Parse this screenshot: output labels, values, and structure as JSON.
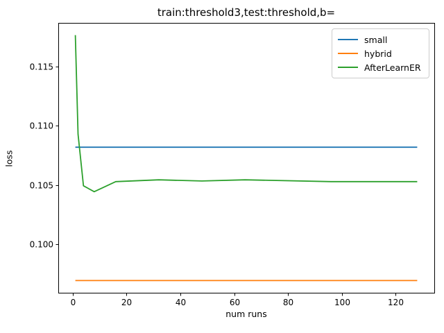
{
  "chart_data": {
    "type": "line",
    "title": "train:threshold3,test:threshold,b=",
    "xlabel": "num runs",
    "ylabel": "loss",
    "xlim": [
      -5.35,
      134.35
    ],
    "ylim": [
      0.09593,
      0.11868
    ],
    "xticks": [
      0,
      20,
      40,
      60,
      80,
      100,
      120
    ],
    "yticks": [
      0.1,
      0.105,
      0.11,
      0.115
    ],
    "ytick_labels": [
      "0.100",
      "0.105",
      "0.110",
      "0.115"
    ],
    "grid": false,
    "legend_position": "upper right",
    "x": [
      1,
      2,
      4,
      8,
      16,
      32,
      48,
      64,
      96,
      128
    ],
    "series": [
      {
        "name": "small",
        "color": "#1f77b4",
        "values": [
          0.1082,
          0.1082,
          0.1082,
          0.1082,
          0.1082,
          0.1082,
          0.1082,
          0.1082,
          0.1082,
          0.1082
        ]
      },
      {
        "name": "hybrid",
        "color": "#ff7f0e",
        "values": [
          0.09696,
          0.09696,
          0.09696,
          0.09696,
          0.09696,
          0.09696,
          0.09696,
          0.09696,
          0.09696,
          0.09696
        ]
      },
      {
        "name": "AfterLearnER",
        "color": "#2ca02c",
        "values": [
          0.11765,
          0.1093,
          0.10495,
          0.10445,
          0.1053,
          0.10545,
          0.10535,
          0.10545,
          0.1053,
          0.1053
        ]
      }
    ]
  }
}
